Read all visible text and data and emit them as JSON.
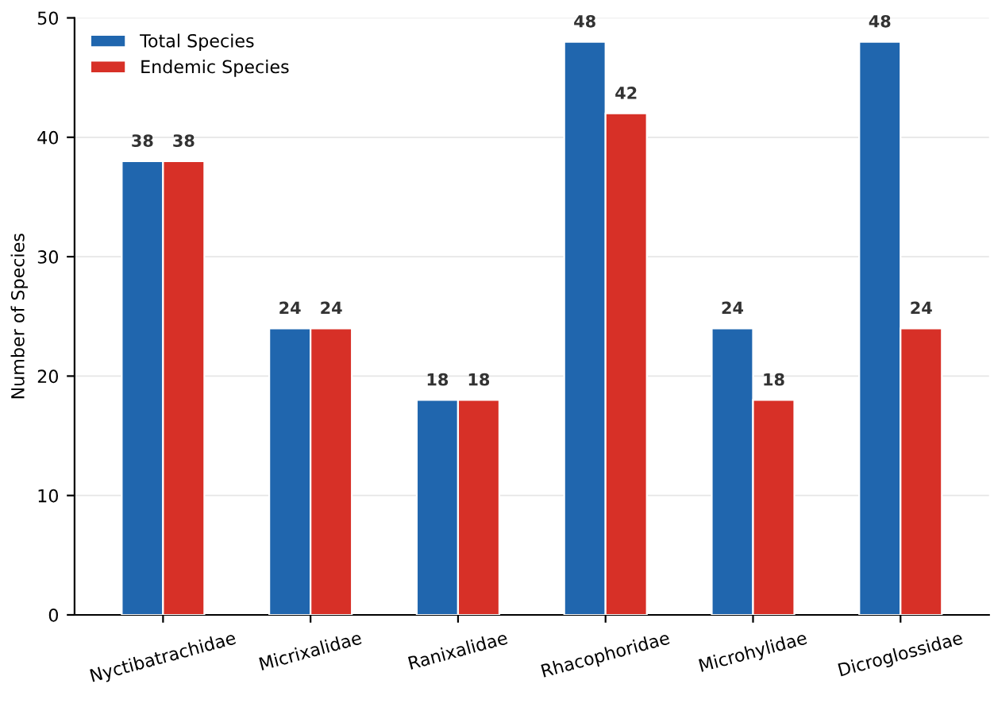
{
  "chart_data": {
    "type": "bar",
    "ylabel": "Number of Species",
    "categories": [
      "Nyctibatrachidae",
      "Micrixalidae",
      "Ranixalidae",
      "Rhacophoridae",
      "Microhylidae",
      "Dicroglossidae"
    ],
    "series": [
      {
        "name": "Total Species",
        "color": "#2066ae",
        "values": [
          38,
          24,
          18,
          48,
          24,
          48
        ]
      },
      {
        "name": "Endemic Species",
        "color": "#d73027",
        "values": [
          38,
          24,
          18,
          42,
          18,
          24
        ]
      }
    ],
    "ylim": [
      0,
      50
    ],
    "yticks": [
      0,
      10,
      20,
      30,
      40,
      50
    ],
    "grid": "y",
    "legend": "top left",
    "data_labels": true
  }
}
